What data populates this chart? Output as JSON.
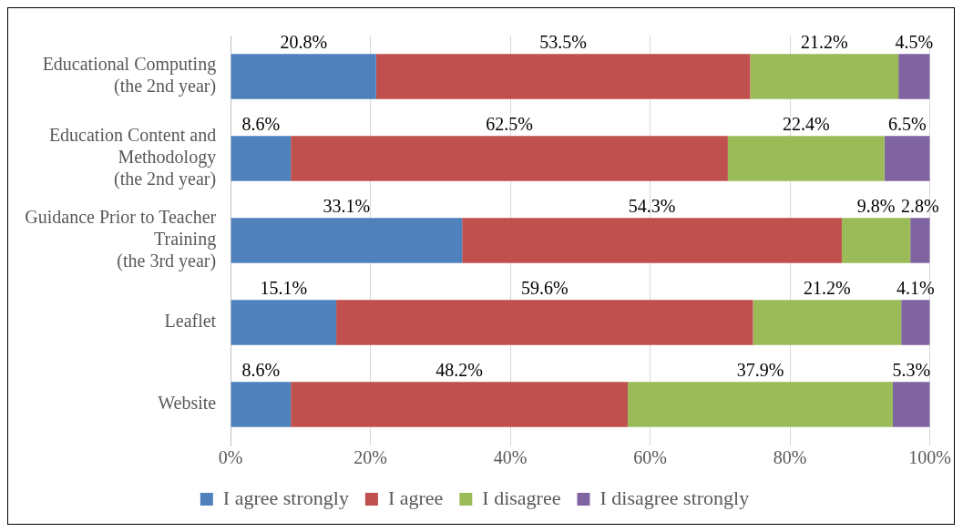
{
  "chart_data": {
    "type": "bar",
    "orientation": "horizontal",
    "stacked": true,
    "categories": [
      "Educational Computing\n(the 2nd year)",
      "Education Content and\nMethodology\n(the 2nd year)",
      "Guidance Prior to Teacher\nTraining\n(the 3rd year)",
      "Leaflet",
      "Website"
    ],
    "series": [
      {
        "name": "I agree strongly",
        "color": "#4f81bd",
        "values": [
          20.8,
          8.6,
          33.1,
          15.1,
          8.6
        ],
        "value_labels": [
          "20.8%",
          "8.6%",
          "33.1%",
          "15.1%",
          "8.6%"
        ]
      },
      {
        "name": "I agree",
        "color": "#c0504d",
        "values": [
          53.5,
          62.5,
          54.3,
          59.6,
          48.2
        ],
        "value_labels": [
          "53.5%",
          "62.5%",
          "54.3%",
          "59.6%",
          "48.2%"
        ]
      },
      {
        "name": "I disagree",
        "color": "#9bbb59",
        "values": [
          21.2,
          22.4,
          9.8,
          21.2,
          37.9
        ],
        "value_labels": [
          "21.2%",
          "22.4%",
          "9.8%",
          "21.2%",
          "37.9%"
        ]
      },
      {
        "name": "I disagree strongly",
        "color": "#8064a2",
        "values": [
          4.5,
          6.5,
          2.8,
          4.1,
          5.3
        ],
        "value_labels": [
          "4.5%",
          "6.5%",
          "2.8%",
          "4.1%",
          "5.3%"
        ]
      }
    ],
    "xlim": [
      0,
      100
    ],
    "xticks": [
      {
        "value": 0,
        "label": "0%"
      },
      {
        "value": 20,
        "label": "20%"
      },
      {
        "value": 40,
        "label": "40%"
      },
      {
        "value": 60,
        "label": "60%"
      },
      {
        "value": 80,
        "label": "80%"
      },
      {
        "value": 100,
        "label": "100%"
      }
    ],
    "grid": "x",
    "legend": "bottom"
  }
}
